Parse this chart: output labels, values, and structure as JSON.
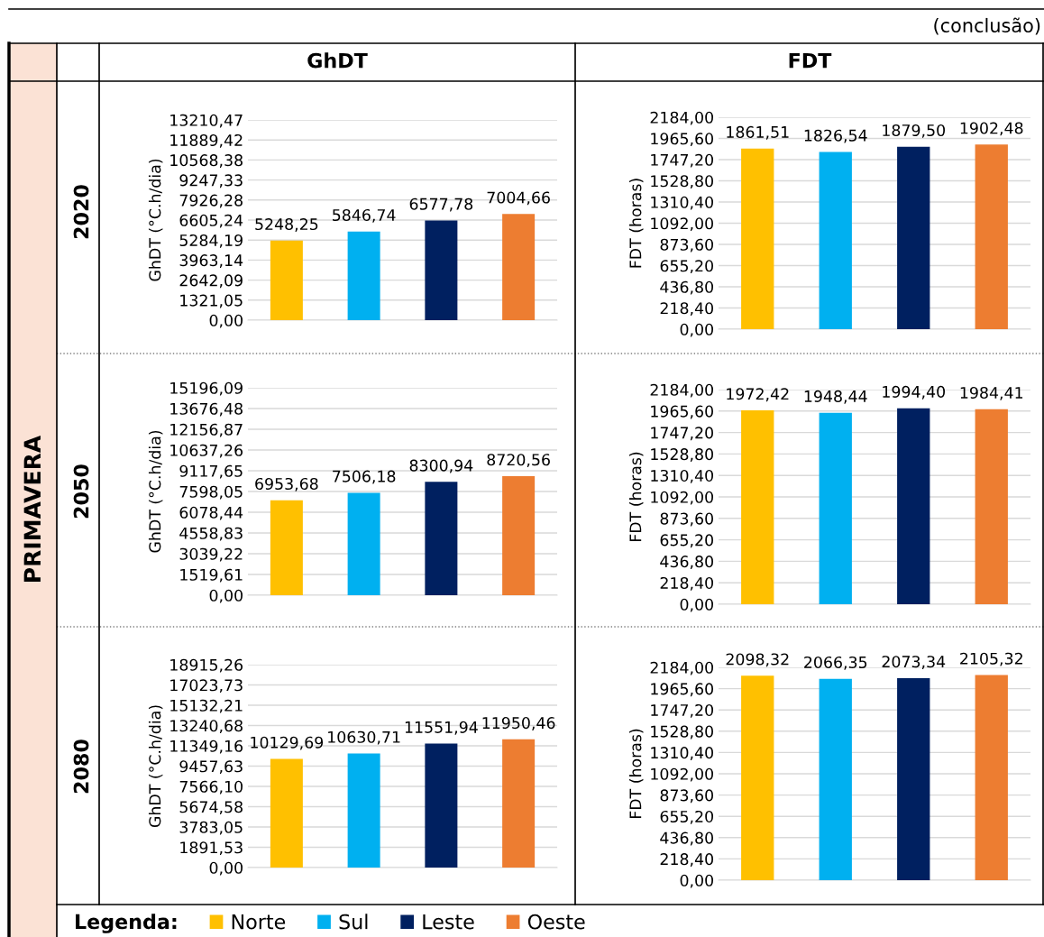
{
  "chart_data": [
    {
      "type": "bar",
      "title": "GhDT",
      "ylabel": "GhDT (°C.h/dia)",
      "legend": "bottom",
      "legend_title": "Legenda:",
      "annotations": [
        "(conclusão)",
        "PRIMAVERA",
        "2020"
      ],
      "categories": [
        null
      ],
      "ylim": [
        0,
        13210.47
      ],
      "yticks": [
        {
          "value": 0,
          "label": "0,00"
        },
        {
          "value": 1321.05,
          "label": "1321,05"
        },
        {
          "value": 2642.09,
          "label": "2642,09"
        },
        {
          "value": 3963.14,
          "label": "3963,14"
        },
        {
          "value": 5284.19,
          "label": "5284,19"
        },
        {
          "value": 6605.24,
          "label": "6605,24"
        },
        {
          "value": 7926.28,
          "label": "7926,28"
        },
        {
          "value": 9247.33,
          "label": "9247,33"
        },
        {
          "value": 10568.38,
          "label": "10568,38"
        },
        {
          "value": 11889.42,
          "label": "11889,42"
        },
        {
          "value": 13210.47,
          "label": "13210,47"
        }
      ],
      "grid": "y",
      "tick_labels": "y",
      "series": [
        {
          "name": "Norte",
          "color": "#ffc000",
          "values": [
            5248.25
          ],
          "value_labels": [
            "5248,25"
          ]
        },
        {
          "name": "Sul",
          "color": "#00b0f0",
          "values": [
            5846.74
          ],
          "value_labels": [
            "5846,74"
          ]
        },
        {
          "name": "Leste",
          "color": "#002060",
          "values": [
            6577.78
          ],
          "value_labels": [
            "6577,78"
          ]
        },
        {
          "name": "Oeste",
          "color": "#ed7d31",
          "values": [
            7004.66
          ],
          "value_labels": [
            "7004,66"
          ]
        }
      ]
    },
    {
      "type": "bar",
      "title": "FDT",
      "ylabel": "FDT (horas)",
      "categories": [
        null
      ],
      "ylim": [
        0,
        2184
      ],
      "yticks": [
        {
          "value": 0,
          "label": "0,00"
        },
        {
          "value": 218.4,
          "label": "218,40"
        },
        {
          "value": 436.8,
          "label": "436,80"
        },
        {
          "value": 655.2,
          "label": "655,20"
        },
        {
          "value": 873.6,
          "label": "873,60"
        },
        {
          "value": 1092,
          "label": "1092,00"
        },
        {
          "value": 1310.4,
          "label": "1310,40"
        },
        {
          "value": 1528.8,
          "label": "1528,80"
        },
        {
          "value": 1747.2,
          "label": "1747,20"
        },
        {
          "value": 1965.6,
          "label": "1965,60"
        },
        {
          "value": 2184,
          "label": "2184,00"
        }
      ],
      "grid": "y",
      "tick_labels": "y",
      "series": [
        {
          "color": "#ffc000",
          "values": [
            1861.51
          ],
          "value_labels": [
            "1861,51"
          ]
        },
        {
          "color": "#00b0f0",
          "values": [
            1826.54
          ],
          "value_labels": [
            "1826,54"
          ]
        },
        {
          "color": "#002060",
          "values": [
            1879.5
          ],
          "value_labels": [
            "1879,50"
          ]
        },
        {
          "color": "#ed7d31",
          "values": [
            1902.48
          ],
          "value_labels": [
            "1902,48"
          ]
        }
      ]
    },
    {
      "type": "bar",
      "ylabel": "GhDT (°C.h/dia)",
      "annotations": [
        "2050"
      ],
      "categories": [
        null
      ],
      "ylim": [
        0,
        15196.09
      ],
      "yticks": [
        {
          "value": 0,
          "label": "0,00"
        },
        {
          "value": 1519.61,
          "label": "1519,61"
        },
        {
          "value": 3039.22,
          "label": "3039,22"
        },
        {
          "value": 4558.83,
          "label": "4558,83"
        },
        {
          "value": 6078.44,
          "label": "6078,44"
        },
        {
          "value": 7598.05,
          "label": "7598,05"
        },
        {
          "value": 9117.65,
          "label": "9117,65"
        },
        {
          "value": 10637.26,
          "label": "10637,26"
        },
        {
          "value": 12156.87,
          "label": "12156,87"
        },
        {
          "value": 13676.48,
          "label": "13676,48"
        },
        {
          "value": 15196.09,
          "label": "15196,09"
        }
      ],
      "grid": "y",
      "tick_labels": "y",
      "series": [
        {
          "color": "#ffc000",
          "values": [
            6953.68
          ],
          "value_labels": [
            "6953,68"
          ]
        },
        {
          "color": "#00b0f0",
          "values": [
            7506.18
          ],
          "value_labels": [
            "7506,18"
          ]
        },
        {
          "color": "#002060",
          "values": [
            8300.94
          ],
          "value_labels": [
            "8300,94"
          ]
        },
        {
          "color": "#ed7d31",
          "values": [
            8720.56
          ],
          "value_labels": [
            "8720,56"
          ]
        }
      ]
    },
    {
      "type": "bar",
      "ylabel": "FDT (horas)",
      "categories": [
        null
      ],
      "ylim": [
        0,
        2184
      ],
      "yticks": [
        {
          "value": 0,
          "label": "0,00"
        },
        {
          "value": 218.4,
          "label": "218,40"
        },
        {
          "value": 436.8,
          "label": "436,80"
        },
        {
          "value": 655.2,
          "label": "655,20"
        },
        {
          "value": 873.6,
          "label": "873,60"
        },
        {
          "value": 1092,
          "label": "1092,00"
        },
        {
          "value": 1310.4,
          "label": "1310,40"
        },
        {
          "value": 1528.8,
          "label": "1528,80"
        },
        {
          "value": 1747.2,
          "label": "1747,20"
        },
        {
          "value": 1965.6,
          "label": "1965,60"
        },
        {
          "value": 2184,
          "label": "2184,00"
        }
      ],
      "grid": "y",
      "tick_labels": "y",
      "series": [
        {
          "color": "#ffc000",
          "values": [
            1972.42
          ],
          "value_labels": [
            "1972,42"
          ]
        },
        {
          "color": "#00b0f0",
          "values": [
            1948.44
          ],
          "value_labels": [
            "1948,44"
          ]
        },
        {
          "color": "#002060",
          "values": [
            1994.4
          ],
          "value_labels": [
            "1994,40"
          ]
        },
        {
          "color": "#ed7d31",
          "values": [
            1984.41
          ],
          "value_labels": [
            "1984,41"
          ]
        }
      ]
    },
    {
      "type": "bar",
      "ylabel": "GhDT (°C.h/dia)",
      "annotations": [
        "2080"
      ],
      "categories": [
        null
      ],
      "ylim": [
        0,
        18915.26
      ],
      "yticks": [
        {
          "value": 0,
          "label": "0,00"
        },
        {
          "value": 1891.53,
          "label": "1891,53"
        },
        {
          "value": 3783.05,
          "label": "3783,05"
        },
        {
          "value": 5674.58,
          "label": "5674,58"
        },
        {
          "value": 7566.1,
          "label": "7566,10"
        },
        {
          "value": 9457.63,
          "label": "9457,63"
        },
        {
          "value": 11349.16,
          "label": "11349,16"
        },
        {
          "value": 13240.68,
          "label": "13240,68"
        },
        {
          "value": 15132.21,
          "label": "15132,21"
        },
        {
          "value": 17023.73,
          "label": "17023,73"
        },
        {
          "value": 18915.26,
          "label": "18915,26"
        }
      ],
      "grid": "y",
      "tick_labels": "y",
      "series": [
        {
          "color": "#ffc000",
          "values": [
            10129.69
          ],
          "value_labels": [
            "10129,69"
          ]
        },
        {
          "color": "#00b0f0",
          "values": [
            10630.71
          ],
          "value_labels": [
            "10630,71"
          ]
        },
        {
          "color": "#002060",
          "values": [
            11551.94
          ],
          "value_labels": [
            "11551,94"
          ]
        },
        {
          "color": "#ed7d31",
          "values": [
            11950.46
          ],
          "value_labels": [
            "11950,46"
          ]
        }
      ]
    },
    {
      "type": "bar",
      "ylabel": "FDT (horas)",
      "categories": [
        null
      ],
      "ylim": [
        0,
        2184
      ],
      "yticks": [
        {
          "value": 0,
          "label": "0,00"
        },
        {
          "value": 218.4,
          "label": "218,40"
        },
        {
          "value": 436.8,
          "label": "436,80"
        },
        {
          "value": 655.2,
          "label": "655,20"
        },
        {
          "value": 873.6,
          "label": "873,60"
        },
        {
          "value": 1092,
          "label": "1092,00"
        },
        {
          "value": 1310.4,
          "label": "1310,40"
        },
        {
          "value": 1528.8,
          "label": "1528,80"
        },
        {
          "value": 1747.2,
          "label": "1747,20"
        },
        {
          "value": 1965.6,
          "label": "1965,60"
        },
        {
          "value": 2184,
          "label": "2184,00"
        }
      ],
      "grid": "y",
      "tick_labels": "y",
      "series": [
        {
          "color": "#ffc000",
          "values": [
            2098.32
          ],
          "value_labels": [
            "2098,32"
          ]
        },
        {
          "color": "#00b0f0",
          "values": [
            2066.35
          ],
          "value_labels": [
            "2066,35"
          ]
        },
        {
          "color": "#002060",
          "values": [
            2073.34
          ],
          "value_labels": [
            "2073,34"
          ]
        },
        {
          "color": "#ed7d31",
          "values": [
            2105.32
          ],
          "value_labels": [
            "2105,32"
          ]
        }
      ]
    }
  ]
}
